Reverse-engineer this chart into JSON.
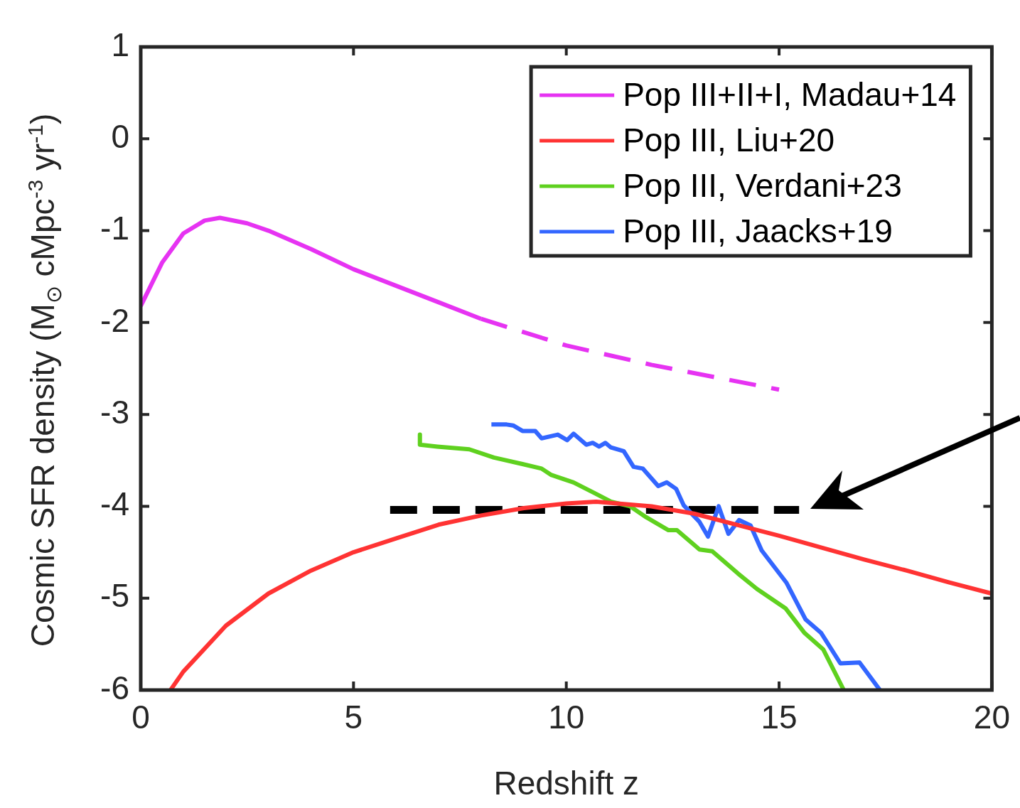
{
  "chart_data": {
    "type": "line",
    "xlabel": "Redshift z",
    "ylabel": "Cosmic SFR density (M$_{⊙}$ cMpc$^{-3}$ yr$^{-1}$)",
    "xlim": [
      0,
      20
    ],
    "ylim": [
      -6,
      1
    ],
    "xticks": [
      0,
      5,
      10,
      15,
      20
    ],
    "yticks": [
      -6,
      -5,
      -4,
      -3,
      -2,
      -1,
      0,
      1
    ],
    "grid": false,
    "legend": "top right",
    "marker": "none",
    "series": [
      {
        "name": "Pop III+II+I, Madau+14",
        "color": "#e633f2",
        "line_style": "solid",
        "x": [
          0,
          0.5,
          1,
          1.5,
          1.86,
          2.5,
          3,
          4,
          5,
          6,
          7,
          8
        ],
        "values": [
          -1.82,
          -1.35,
          -1.03,
          -0.89,
          -0.86,
          -0.92,
          -1.0,
          -1.2,
          -1.42,
          -1.6,
          -1.78,
          -1.96
        ]
      },
      {
        "color": "#e633f2",
        "line_style": "dashed",
        "x": [
          8,
          10,
          12,
          15
        ],
        "values": [
          -1.96,
          -2.25,
          -2.46,
          -2.73
        ]
      },
      {
        "name": "Pop III, Liu+20",
        "color": "#ff3333",
        "line_style": "solid",
        "x": [
          0.7,
          1,
          2,
          3,
          4,
          5,
          6,
          7,
          8,
          9,
          10,
          10.7,
          12,
          13,
          14,
          15,
          16,
          17,
          18,
          19,
          20
        ],
        "values": [
          -6,
          -5.8,
          -5.3,
          -4.95,
          -4.7,
          -4.5,
          -4.35,
          -4.2,
          -4.1,
          -4.02,
          -3.97,
          -3.95,
          -4.0,
          -4.08,
          -4.2,
          -4.32,
          -4.45,
          -4.58,
          -4.7,
          -4.83,
          -4.95
        ]
      },
      {
        "name": "Pop III, Verdani+23",
        "color": "#5fd11f",
        "line_style": "solid",
        "x": [
          6.56,
          6.56,
          6.97,
          7.72,
          8.3,
          8.97,
          9.42,
          9.65,
          10.17,
          10.68,
          11.05,
          11.5,
          11.88,
          12.4,
          12.6,
          13.13,
          13.43,
          14.03,
          14.48,
          15.15,
          15.6,
          16.04,
          16.52
        ],
        "values": [
          -3.22,
          -3.33,
          -3.35,
          -3.38,
          -3.47,
          -3.54,
          -3.59,
          -3.66,
          -3.74,
          -3.86,
          -3.95,
          -4.0,
          -4.12,
          -4.26,
          -4.26,
          -4.47,
          -4.49,
          -4.73,
          -4.9,
          -5.11,
          -5.38,
          -5.56,
          -6.0
        ]
      },
      {
        "name": "Pop III, Jaacks+19",
        "color": "#3366ff",
        "line_style": "solid",
        "x": [
          8.24,
          8.6,
          8.75,
          8.97,
          9.27,
          9.42,
          9.8,
          10.02,
          10.17,
          10.47,
          10.62,
          10.77,
          10.92,
          11.05,
          11.35,
          11.58,
          11.8,
          12.16,
          12.36,
          12.58,
          12.76,
          13.13,
          13.33,
          13.58,
          13.81,
          14.06,
          14.33,
          14.59,
          15.17,
          15.62,
          15.99,
          16.44,
          16.89,
          17.37
        ],
        "values": [
          -3.11,
          -3.11,
          -3.12,
          -3.18,
          -3.18,
          -3.26,
          -3.22,
          -3.28,
          -3.21,
          -3.33,
          -3.31,
          -3.35,
          -3.31,
          -3.36,
          -3.4,
          -3.57,
          -3.59,
          -3.78,
          -3.74,
          -3.81,
          -3.99,
          -4.17,
          -4.33,
          -4.0,
          -4.3,
          -4.15,
          -4.21,
          -4.48,
          -4.83,
          -5.23,
          -5.38,
          -5.71,
          -5.7,
          -6.0
        ]
      },
      {
        "color": "#000000",
        "line_style": "dashed",
        "x": [
          5.86,
          15.47
        ],
        "values": [
          -4.04,
          -4.04
        ]
      }
    ]
  }
}
